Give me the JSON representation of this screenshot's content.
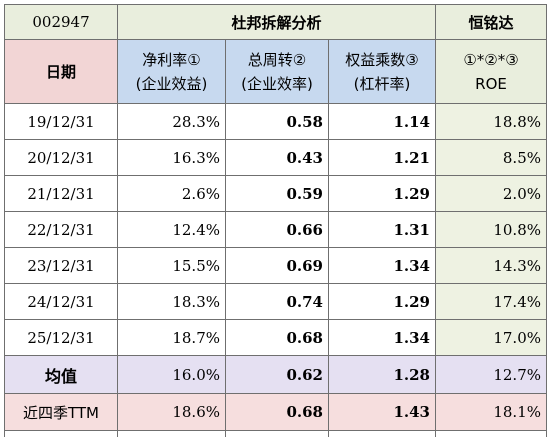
{
  "header": {
    "code": "002947",
    "title": "杜邦拆解分析",
    "company": "恒铭达"
  },
  "columns": {
    "date": "日期",
    "net_margin": [
      "净利率①",
      "(企业效益)"
    ],
    "asset_turnover": [
      "总周转②",
      "(企业效率)"
    ],
    "equity_multiplier": [
      "权益乘数③",
      "(杠杆率)"
    ],
    "roe": [
      "①*②*③",
      "ROE"
    ]
  },
  "rows": [
    {
      "date": "19/12/31",
      "net_margin": "28.3%",
      "asset_turnover": "0.58",
      "equity_multiplier": "1.14",
      "roe": "18.8%"
    },
    {
      "date": "20/12/31",
      "net_margin": "16.3%",
      "asset_turnover": "0.43",
      "equity_multiplier": "1.21",
      "roe": "8.5%"
    },
    {
      "date": "21/12/31",
      "net_margin": "2.6%",
      "asset_turnover": "0.59",
      "equity_multiplier": "1.29",
      "roe": "2.0%"
    },
    {
      "date": "22/12/31",
      "net_margin": "12.4%",
      "asset_turnover": "0.66",
      "equity_multiplier": "1.31",
      "roe": "10.8%"
    },
    {
      "date": "23/12/31",
      "net_margin": "15.5%",
      "asset_turnover": "0.69",
      "equity_multiplier": "1.34",
      "roe": "14.3%"
    },
    {
      "date": "24/12/31",
      "net_margin": "18.3%",
      "asset_turnover": "0.74",
      "equity_multiplier": "1.29",
      "roe": "17.4%"
    },
    {
      "date": "25/12/31",
      "net_margin": "18.7%",
      "asset_turnover": "0.68",
      "equity_multiplier": "1.34",
      "roe": "17.0%"
    }
  ],
  "average": {
    "label": "均值",
    "net_margin": "16.0%",
    "asset_turnover": "0.62",
    "equity_multiplier": "1.28",
    "roe": "12.7%"
  },
  "ttm": {
    "label": "近四季TTM",
    "net_margin": "18.6%",
    "asset_turnover": "0.68",
    "equity_multiplier": "1.43",
    "roe": "18.1%"
  },
  "colors": {
    "net_margin_text": "#2e7d32",
    "equity_multiplier_text": "#1a2a9c",
    "header_blue": "#c7d9ef",
    "header_green": "#e9eedd",
    "date_header_pink": "#f2d5d5",
    "average_row": "#e5e0f2",
    "ttm_row": "#f6dede"
  }
}
